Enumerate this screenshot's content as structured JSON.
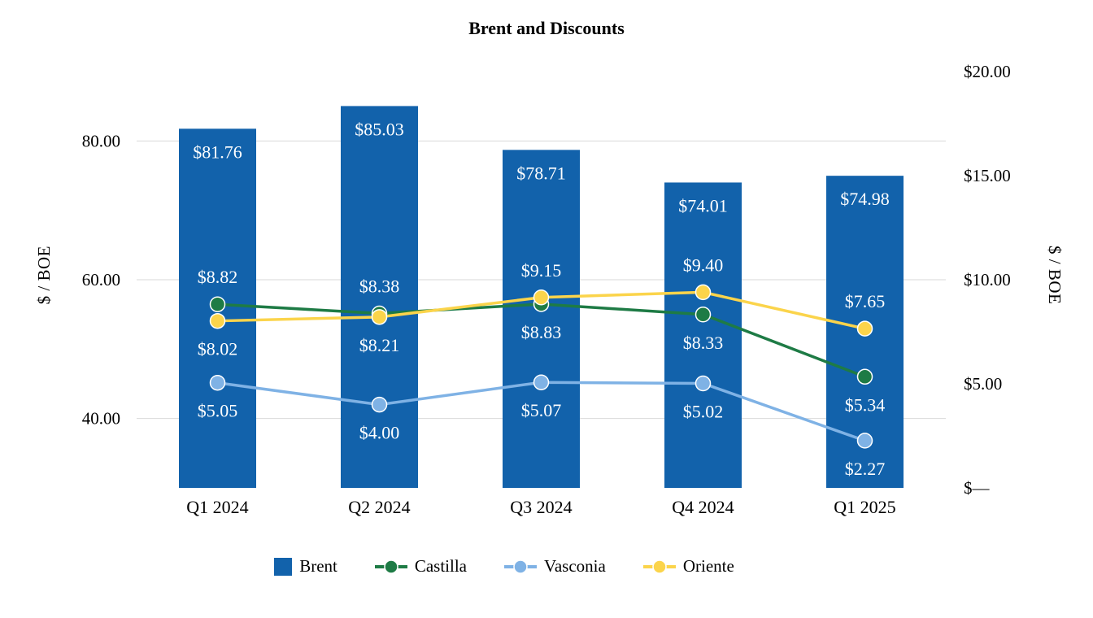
{
  "chart": {
    "title": "Brent and Discounts",
    "left_axis": {
      "title": "$ / BOE",
      "min": 30,
      "max": 90,
      "tick_values": [
        80,
        60,
        40
      ],
      "tick_labels": [
        "80.00",
        "60.00",
        "40.00"
      ]
    },
    "right_axis": {
      "title": "$ / BOE",
      "min": 0,
      "max": 20,
      "tick_values": [
        20,
        15,
        10,
        5,
        0
      ],
      "tick_labels": [
        "$20.00",
        "$15.00",
        "$10.00",
        "$5.00",
        "$—"
      ]
    },
    "gridline_values": [
      80,
      60,
      40
    ],
    "colors": {
      "bar": "#1262ab",
      "castilla": "#1e7b45",
      "vasconia": "#7fb2e5",
      "oriente": "#fbd44b",
      "gridline": "#d9d9d9",
      "data_label_text": "#ffffff"
    }
  },
  "chart_data": {
    "type": "bar",
    "title": "Brent and Discounts",
    "categories": [
      "Q1 2024",
      "Q2 2024",
      "Q3 2024",
      "Q4 2024",
      "Q1 2025"
    ],
    "series": [
      {
        "name": "Brent",
        "type": "bar",
        "axis": "left",
        "color": "#1262ab",
        "values": [
          81.76,
          85.03,
          78.71,
          74.01,
          74.98
        ],
        "labels": [
          "$81.76",
          "$85.03",
          "$78.71",
          "$74.01",
          "$74.98"
        ]
      },
      {
        "name": "Castilla",
        "type": "line",
        "axis": "right",
        "color": "#1e7b45",
        "values": [
          8.82,
          8.38,
          8.83,
          8.33,
          5.34
        ],
        "labels": [
          "$8.82",
          "$8.38",
          "$8.83",
          "$8.33",
          "$5.34"
        ]
      },
      {
        "name": "Vasconia",
        "type": "line",
        "axis": "right",
        "color": "#7fb2e5",
        "values": [
          5.05,
          4.0,
          5.07,
          5.02,
          2.27
        ],
        "labels": [
          "$5.05",
          "$4.00",
          "$5.07",
          "$5.02",
          "$2.27"
        ]
      },
      {
        "name": "Oriente",
        "type": "line",
        "axis": "right",
        "color": "#fbd44b",
        "values": [
          8.02,
          8.21,
          9.15,
          9.4,
          7.65
        ],
        "labels": [
          "$8.02",
          "$8.21",
          "$9.15",
          "$9.40",
          "$7.65"
        ]
      }
    ],
    "ylabel_left": "$ / BOE",
    "ylabel_right": "$ / BOE",
    "left_ylim": [
      30,
      90
    ],
    "right_ylim": [
      0,
      20
    ],
    "grid": true,
    "legend_position": "bottom"
  }
}
